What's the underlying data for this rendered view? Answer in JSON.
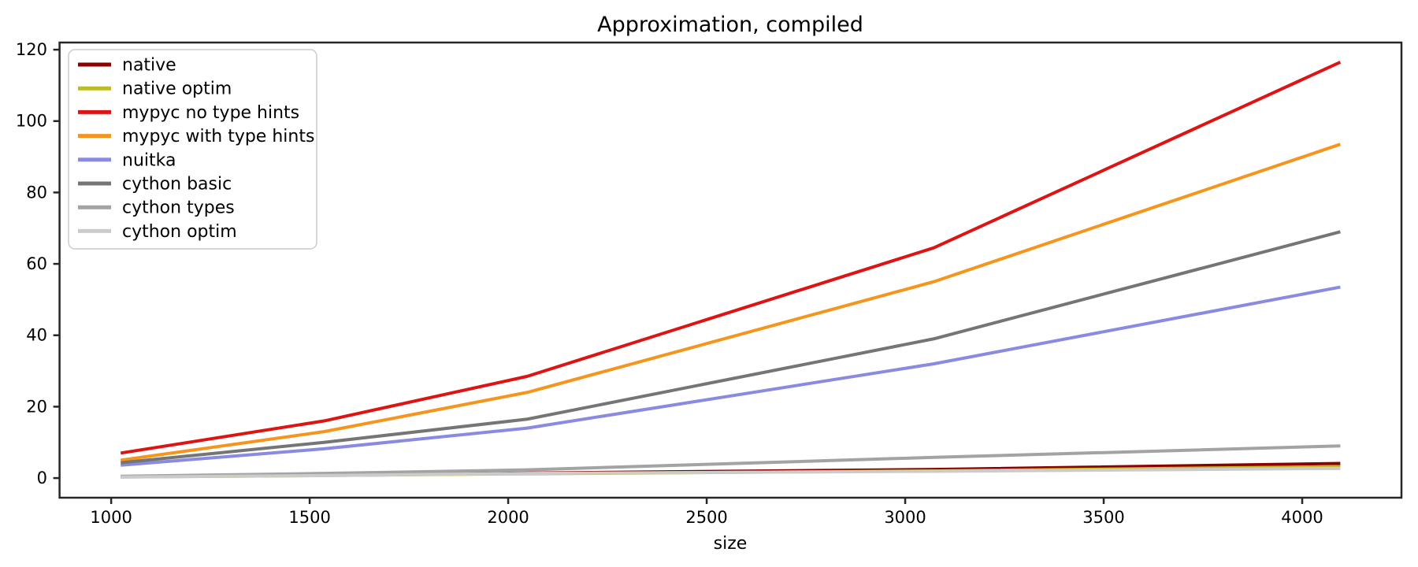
{
  "figure": {
    "background": "#ffffff",
    "axis_color": "#262626"
  },
  "chart_data": {
    "type": "line",
    "title": "Approximation, compiled",
    "xlabel": "size",
    "ylabel": "",
    "x": [
      1024,
      1536,
      2048,
      3072,
      4096
    ],
    "series": [
      {
        "name": "native",
        "color": "#8b0000",
        "values": [
          0.4,
          0.8,
          1.4,
          2.4,
          4.1
        ]
      },
      {
        "name": "native optim",
        "color": "#bcbd22",
        "values": [
          0.3,
          0.7,
          1.2,
          2.0,
          3.2
        ]
      },
      {
        "name": "mypyc no type hints",
        "color": "#dc1414",
        "values": [
          7.0,
          16.0,
          28.5,
          64.5,
          116.5
        ]
      },
      {
        "name": "mypyc with type hints",
        "color": "#f5951d",
        "values": [
          5.0,
          13.0,
          24.0,
          55.0,
          93.5
        ]
      },
      {
        "name": "nuitka",
        "color": "#8a8ae0",
        "values": [
          3.6,
          8.2,
          14.0,
          32.0,
          53.5
        ]
      },
      {
        "name": "cython basic",
        "color": "#757575",
        "values": [
          4.3,
          10.0,
          16.5,
          39.0,
          69.0
        ]
      },
      {
        "name": "cython types",
        "color": "#a3a3a3",
        "values": [
          0.5,
          1.3,
          2.3,
          5.8,
          9.0
        ]
      },
      {
        "name": "cython optim",
        "color": "#cbcbcb",
        "values": [
          0.3,
          0.7,
          1.3,
          1.9,
          2.7
        ]
      }
    ],
    "x_ticks": [
      1000,
      1500,
      2000,
      2500,
      3000,
      3500,
      4000
    ],
    "y_ticks": [
      0,
      20,
      40,
      60,
      80,
      100,
      120
    ],
    "xlim": [
      870,
      4250
    ],
    "ylim": [
      -5.5,
      122
    ],
    "grid": false,
    "legend_position": "upper left"
  }
}
